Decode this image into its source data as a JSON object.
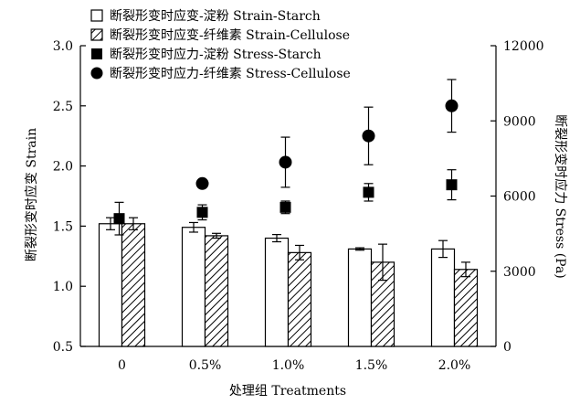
{
  "chart_data": {
    "type": "bar",
    "categories": [
      "0",
      "0.5%",
      "1.0%",
      "1.5%",
      "2.0%"
    ],
    "xlabel": "处理组 Treatments",
    "ylabel_left": "断裂形变时应变 Strain",
    "ylabel_right": "断裂形变时应力 Stress (Pa)",
    "ylim_left": [
      0.5,
      3.0
    ],
    "yticks_left": [
      "0.5",
      "1.0",
      "1.5",
      "2.0",
      "2.5",
      "3.0"
    ],
    "ylim_right": [
      0,
      12000
    ],
    "yticks_right": [
      "0",
      "3000",
      "6000",
      "9000",
      "12000"
    ],
    "legend_position": "top-left",
    "grid": false,
    "series": [
      {
        "name": "断裂形变时应变-淀粉 Strain-Starch",
        "kind": "bar",
        "axis": "left",
        "style": "white",
        "values": [
          1.52,
          1.49,
          1.4,
          1.31,
          1.31
        ],
        "errors": [
          0.05,
          0.04,
          0.03,
          0.01,
          0.07
        ]
      },
      {
        "name": "断裂形变时应变-纤维素 Strain-Cellulose",
        "kind": "bar",
        "axis": "left",
        "style": "hatch",
        "values": [
          1.52,
          1.42,
          1.28,
          1.2,
          1.14
        ],
        "errors": [
          0.05,
          0.02,
          0.06,
          0.15,
          0.06
        ]
      },
      {
        "name": "断裂形变时应力-淀粉 Stress-Starch",
        "kind": "marker",
        "axis": "right",
        "marker": "square",
        "values": [
          5100,
          5350,
          5550,
          6150,
          6450
        ],
        "errors": [
          650,
          300,
          250,
          350,
          600
        ]
      },
      {
        "name": "断裂形变时应力-纤维素 Stress-Cellulose",
        "kind": "marker",
        "axis": "right",
        "marker": "circle",
        "values": [
          null,
          6500,
          7350,
          8400,
          9600
        ],
        "errors": [
          null,
          0,
          1000,
          1150,
          1050
        ]
      }
    ]
  }
}
